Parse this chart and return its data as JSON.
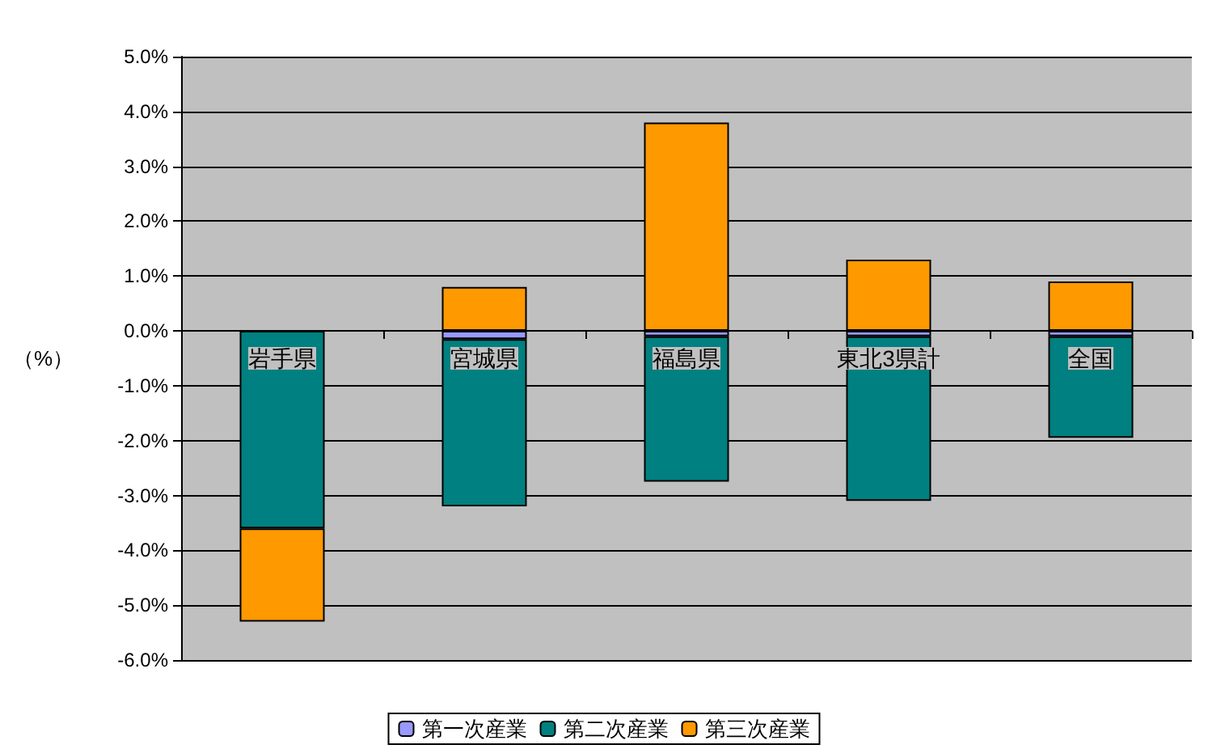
{
  "chart_data": {
    "type": "bar",
    "stacked": true,
    "ylabel": "（%）",
    "categories": [
      "岩手県",
      "宮城県",
      "福島県",
      "東北3県計",
      "全国"
    ],
    "series": [
      {
        "name": "第一次産業",
        "color": "#9999ff",
        "values": [
          null,
          -0.15,
          -0.1,
          -0.1,
          -0.1
        ]
      },
      {
        "name": "第二次産業",
        "color": "#008080",
        "values": [
          -3.6,
          -3.05,
          -2.65,
          -3.0,
          -1.85
        ]
      },
      {
        "name": "第三次産業",
        "color": "#ff9900",
        "values": [
          -1.7,
          0.8,
          3.8,
          1.3,
          0.9
        ]
      }
    ],
    "ylim": [
      -6,
      5
    ],
    "yticks": [
      {
        "value": -6,
        "label": "-6.0%"
      },
      {
        "value": -5,
        "label": "-5.0%"
      },
      {
        "value": -4,
        "label": "-4.0%"
      },
      {
        "value": -3,
        "label": "-3.0%"
      },
      {
        "value": -2,
        "label": "-2.0%"
      },
      {
        "value": -1,
        "label": "-1.0%"
      },
      {
        "value": 0,
        "label": "0.0%"
      },
      {
        "value": 1,
        "label": "1.0%"
      },
      {
        "value": 2,
        "label": "2.0%"
      },
      {
        "value": 3,
        "label": "3.0%"
      },
      {
        "value": 4,
        "label": "4.0%"
      },
      {
        "value": 5,
        "label": "5.0%"
      }
    ],
    "grid": "y",
    "legend": "bottom"
  }
}
